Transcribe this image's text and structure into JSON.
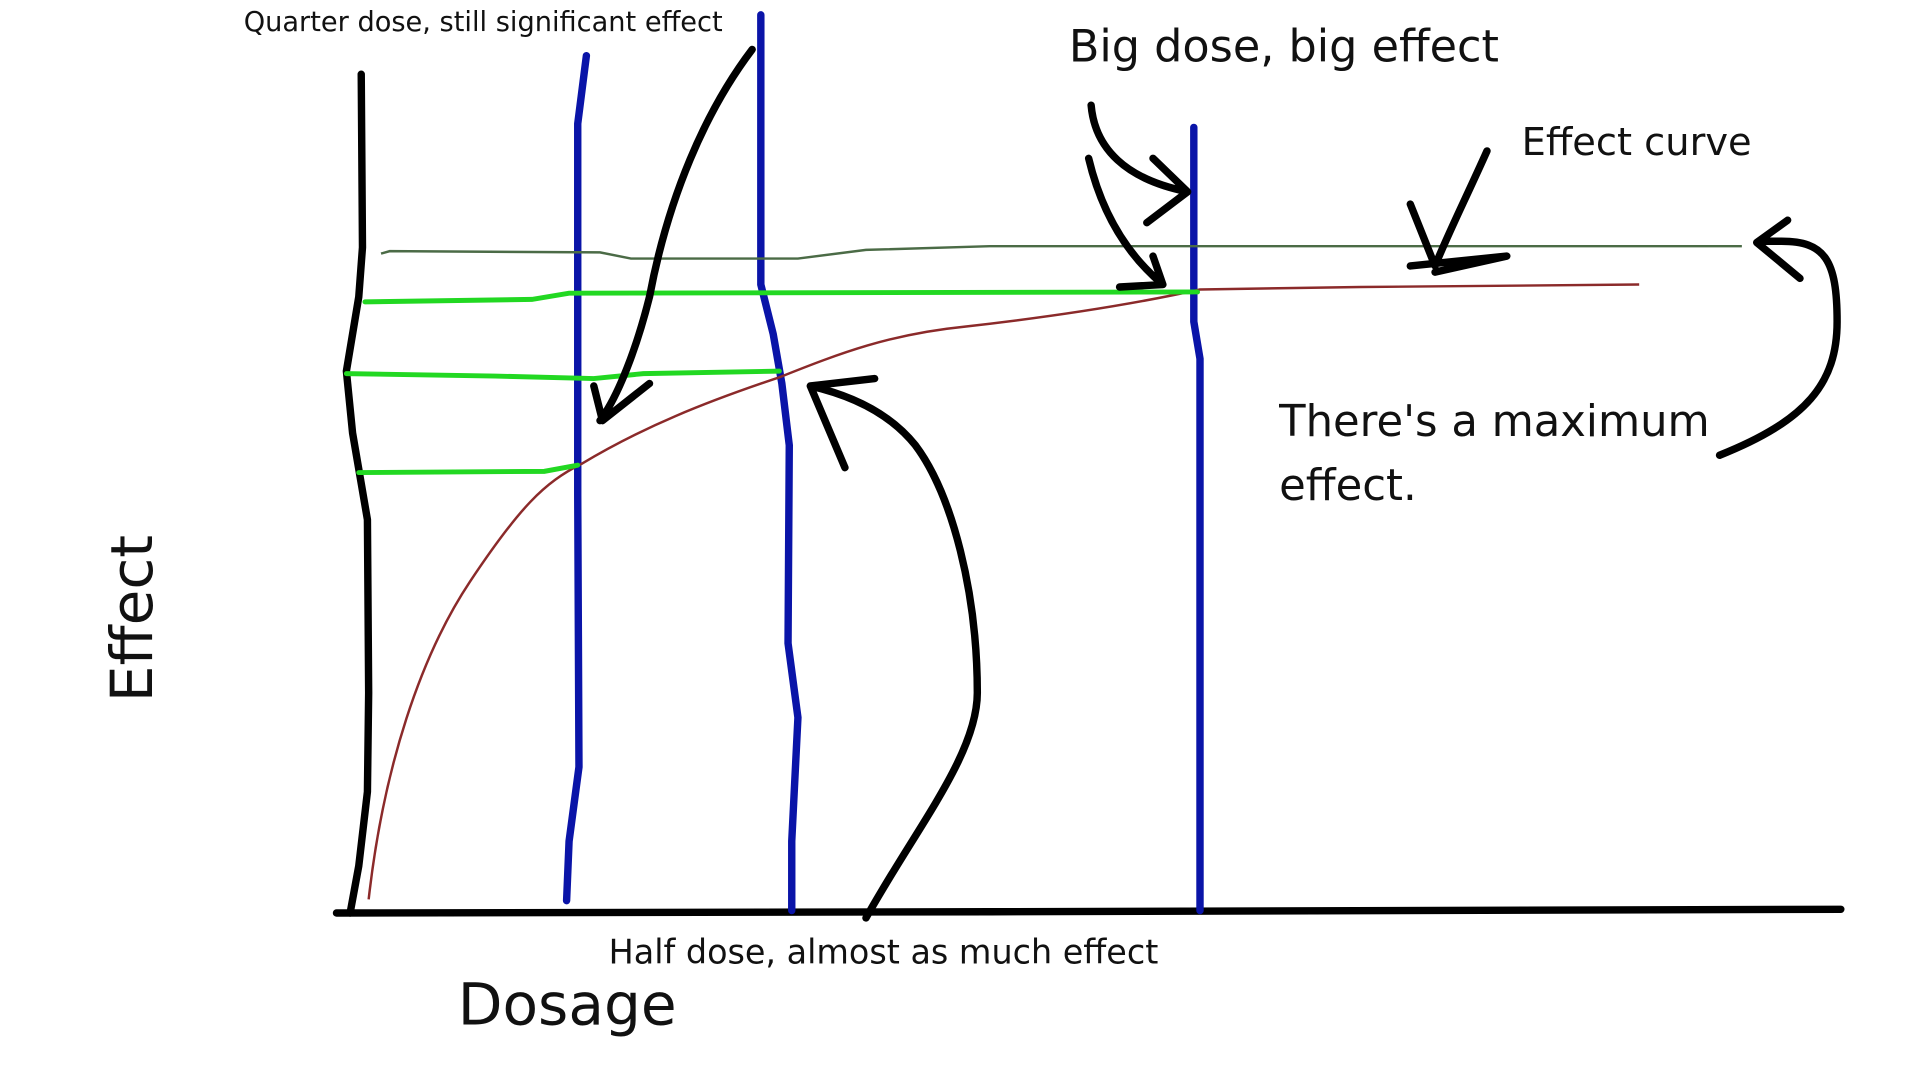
{
  "labels": {
    "quarter": "Quarter dose, still significant effect",
    "big": "Big dose, big effect",
    "curve": "Effect curve",
    "maximum": [
      "There's a maximum",
      "effect."
    ],
    "half": "Half dose, almost as much effect",
    "x_axis": "Dosage",
    "y_axis": "Effect"
  }
}
